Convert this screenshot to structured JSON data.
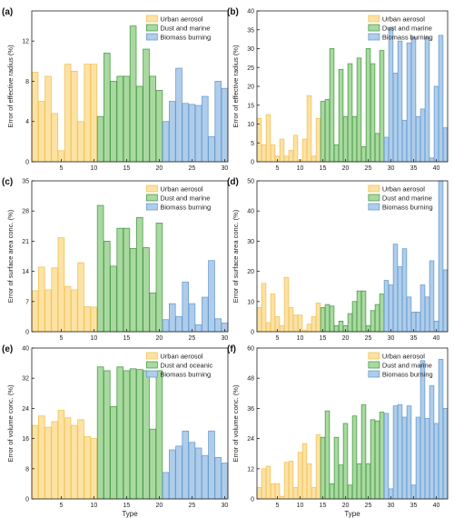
{
  "colors": {
    "urban_fill": "#FCE2A3",
    "urban_stroke": "#F2C35B",
    "dust_fill": "#A9D9A0",
    "dust_stroke": "#4E9E4B",
    "bio_fill": "#AFCDEB",
    "bio_stroke": "#6A9ECF"
  },
  "chart_data": [
    {
      "panel": "(a)",
      "type": "bar",
      "ylabel": "Error of effective radius (%)",
      "xlabel": "",
      "ylim": [
        0,
        15
      ],
      "yticks": [
        0,
        4,
        8,
        12
      ],
      "xlim": [
        0.5,
        30.5
      ],
      "xticks": [
        5,
        10,
        15,
        20,
        25,
        30
      ],
      "legend": [
        "Urban aerosol",
        "Dust and marine",
        "Biomass burning"
      ],
      "legend_position": "top-right",
      "groups": [
        {
          "name": "Urban aerosol",
          "x_start": 1,
          "values": [
            8.9,
            6.0,
            8.5,
            4.8,
            1.1,
            9.7,
            9.0,
            4.0,
            9.7,
            9.7
          ]
        },
        {
          "name": "Dust and marine",
          "x_start": 11,
          "values": [
            4.5,
            10.8,
            8.0,
            8.5,
            8.5,
            13.5,
            7.5,
            11.2,
            8.5,
            7.1
          ]
        },
        {
          "name": "Biomass burning",
          "x_start": 21,
          "values": [
            4.0,
            6.0,
            9.3,
            5.8,
            5.7,
            5.6,
            6.5,
            2.5,
            8.0,
            7.3
          ]
        }
      ]
    },
    {
      "panel": "(b)",
      "type": "bar",
      "ylabel": "Error of effective radius (%)",
      "xlabel": "",
      "ylim": [
        0,
        40
      ],
      "yticks": [
        0,
        5,
        10,
        15,
        20,
        25,
        30,
        35,
        40
      ],
      "xlim": [
        0.5,
        42.5
      ],
      "xticks": [
        5,
        10,
        15,
        20,
        25,
        30,
        35,
        40
      ],
      "legend": [
        "Urban aerosol",
        "Dust and marine",
        "Biomass burning"
      ],
      "legend_position": "top-right",
      "groups": [
        {
          "name": "Urban aerosol",
          "x_start": 1,
          "values": [
            11.5,
            4.5,
            12.5,
            4.5,
            1.5,
            6.0,
            1.5,
            3.0,
            7.0,
            0.5,
            6.0,
            17.5,
            1.5,
            11.5
          ]
        },
        {
          "name": "Dust and marine",
          "x_start": 15,
          "values": [
            16.0,
            16.5,
            30.0,
            4.5,
            24.5,
            12.0,
            26.0,
            12.0,
            27.5,
            4.0,
            30.0,
            26.0,
            7.5,
            29.5
          ]
        },
        {
          "name": "Biomass burning",
          "x_start": 29,
          "values": [
            6.5,
            35.5,
            23.5,
            32.0,
            11.0,
            31.5,
            33.0,
            12.0,
            14.0,
            33.0,
            1.0,
            20.0,
            33.5,
            9.0
          ]
        }
      ]
    },
    {
      "panel": "(c)",
      "type": "bar",
      "ylabel": "Error of surface area conc. (%)",
      "xlabel": "",
      "ylim": [
        0,
        35
      ],
      "yticks": [
        0,
        7,
        14,
        21,
        28,
        35
      ],
      "xlim": [
        0.5,
        30.5
      ],
      "xticks": [
        5,
        10,
        15,
        20,
        25,
        30
      ],
      "legend": [
        "Urban aerosol",
        "Dust and marine",
        "Biomass burning"
      ],
      "legend_position": "top-right",
      "groups": [
        {
          "name": "Urban aerosol",
          "x_start": 1,
          "values": [
            9.5,
            15.0,
            9.7,
            14.8,
            21.8,
            10.5,
            9.7,
            16.0,
            5.8,
            5.7
          ]
        },
        {
          "name": "Dust and marine",
          "x_start": 11,
          "values": [
            29.3,
            21.0,
            15.2,
            24.0,
            24.0,
            19.3,
            26.5,
            19.5,
            9.0,
            25.2
          ]
        },
        {
          "name": "Biomass burning",
          "x_start": 21,
          "values": [
            2.8,
            6.5,
            3.5,
            11.5,
            6.5,
            1.6,
            8.0,
            16.5,
            3.0,
            2.0
          ]
        }
      ]
    },
    {
      "panel": "(d)",
      "type": "bar",
      "ylabel": "Error of surface area conc. (%)",
      "xlabel": "",
      "ylim": [
        0,
        50
      ],
      "yticks": [
        0,
        10,
        20,
        30,
        40,
        50
      ],
      "xlim": [
        0.5,
        42.5
      ],
      "xticks": [
        5,
        10,
        15,
        20,
        25,
        30,
        35,
        40
      ],
      "legend": [
        "Urban aerosol",
        "Dust and marine",
        "Biomass burning"
      ],
      "legend_position": "top-right",
      "groups": [
        {
          "name": "Urban aerosol",
          "x_start": 1,
          "values": [
            8.0,
            16.0,
            3.0,
            12.5,
            5.0,
            2.0,
            18.0,
            8.0,
            5.5,
            5.5,
            0.5,
            2.5,
            5.0,
            9.5
          ]
        },
        {
          "name": "Dust and marine",
          "x_start": 15,
          "values": [
            8.0,
            9.0,
            8.5,
            2.0,
            3.5,
            2.0,
            6.0,
            10.0,
            13.5,
            13.5,
            2.0,
            7.0,
            9.0,
            12.5
          ]
        },
        {
          "name": "Biomass burning",
          "x_start": 29,
          "values": [
            17.0,
            15.5,
            29.0,
            21.5,
            27.5,
            11.5,
            6.5,
            6.5,
            15.5,
            11.5,
            23.5,
            3.5,
            51.0,
            20.5
          ]
        }
      ]
    },
    {
      "panel": "(e)",
      "type": "bar",
      "ylabel": "Error of volume conc. (%)",
      "xlabel": "Type",
      "ylim": [
        0,
        40
      ],
      "yticks": [
        0,
        8,
        16,
        24,
        32,
        40
      ],
      "xlim": [
        0.5,
        30.5
      ],
      "xticks": [
        5,
        10,
        15,
        20,
        25,
        30
      ],
      "legend": [
        "Urban aerosol",
        "Dust and oceanic",
        "Biomass burning"
      ],
      "legend_position": "top-right",
      "groups": [
        {
          "name": "Urban aerosol",
          "x_start": 1,
          "values": [
            19.5,
            22.0,
            19.0,
            20.5,
            23.5,
            21.5,
            19.5,
            21.0,
            16.5,
            16.0
          ]
        },
        {
          "name": "Dust and oceanic",
          "x_start": 11,
          "values": [
            35.0,
            34.0,
            24.5,
            35.0,
            34.0,
            34.5,
            34.3,
            34.0,
            18.5,
            34.0
          ]
        },
        {
          "name": "Biomass burning",
          "x_start": 21,
          "values": [
            7.0,
            13.0,
            14.0,
            18.0,
            15.0,
            13.5,
            11.5,
            18.0,
            11.0,
            9.5
          ]
        }
      ]
    },
    {
      "panel": "(f)",
      "type": "bar",
      "ylabel": "Error of volume conc. (%)",
      "xlabel": "Type",
      "ylim": [
        0,
        60
      ],
      "yticks": [
        0,
        12,
        24,
        36,
        48,
        60
      ],
      "xlim": [
        0.5,
        42.5
      ],
      "xticks": [
        5,
        10,
        15,
        20,
        25,
        30,
        35,
        40
      ],
      "legend": [
        "Urban aerosol",
        "Dust and marine",
        "Biomass burning"
      ],
      "legend_position": "top-right",
      "groups": [
        {
          "name": "Urban aerosol",
          "x_start": 1,
          "values": [
            4.5,
            12.0,
            13.0,
            6.0,
            6.0,
            1.0,
            14.5,
            15.0,
            4.5,
            18.5,
            22.0,
            14.0,
            4.5,
            25.5
          ]
        },
        {
          "name": "Dust and marine",
          "x_start": 15,
          "values": [
            24.5,
            35.0,
            6.0,
            24.5,
            13.5,
            30.0,
            5.5,
            33.0,
            14.0,
            37.5,
            14.0,
            31.5,
            31.0,
            34.5
          ]
        },
        {
          "name": "Biomass burning",
          "x_start": 29,
          "values": [
            34.0,
            4.0,
            37.0,
            37.5,
            32.5,
            37.0,
            5.5,
            32.5,
            55.0,
            32.0,
            45.0,
            30.0,
            55.5,
            36.0
          ]
        }
      ]
    }
  ]
}
